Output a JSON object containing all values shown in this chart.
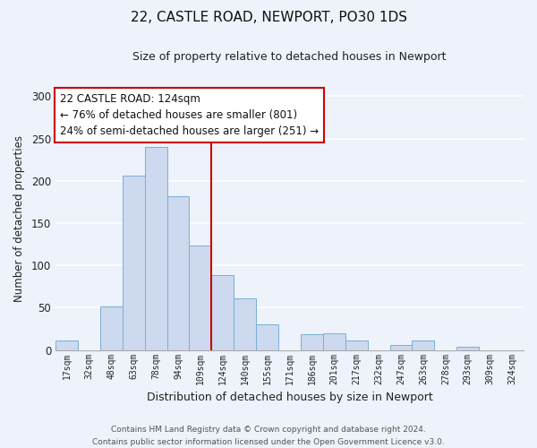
{
  "title": "22, CASTLE ROAD, NEWPORT, PO30 1DS",
  "subtitle": "Size of property relative to detached houses in Newport",
  "xlabel": "Distribution of detached houses by size in Newport",
  "ylabel": "Number of detached properties",
  "bar_color": "#ccd9ee",
  "bar_edge_color": "#7aafd4",
  "categories": [
    "17sqm",
    "32sqm",
    "48sqm",
    "63sqm",
    "78sqm",
    "94sqm",
    "109sqm",
    "124sqm",
    "140sqm",
    "155sqm",
    "171sqm",
    "186sqm",
    "201sqm",
    "217sqm",
    "232sqm",
    "247sqm",
    "263sqm",
    "278sqm",
    "293sqm",
    "309sqm",
    "324sqm"
  ],
  "values": [
    11,
    0,
    52,
    206,
    240,
    182,
    124,
    89,
    61,
    30,
    0,
    19,
    20,
    11,
    0,
    6,
    11,
    0,
    4,
    0,
    0
  ],
  "vline_x_index": 7,
  "vline_color": "#cc0000",
  "annotation_title": "22 CASTLE ROAD: 124sqm",
  "annotation_line1": "← 76% of detached houses are smaller (801)",
  "annotation_line2": "24% of semi-detached houses are larger (251) →",
  "annotation_box_color": "#ffffff",
  "annotation_box_edge": "#cc0000",
  "ylim": [
    0,
    310
  ],
  "yticks": [
    0,
    50,
    100,
    150,
    200,
    250,
    300
  ],
  "footer1": "Contains HM Land Registry data © Crown copyright and database right 2024.",
  "footer2": "Contains public sector information licensed under the Open Government Licence v3.0.",
  "background_color": "#edf2fb",
  "grid_color": "#ffffff",
  "title_fontsize": 11,
  "subtitle_fontsize": 9
}
